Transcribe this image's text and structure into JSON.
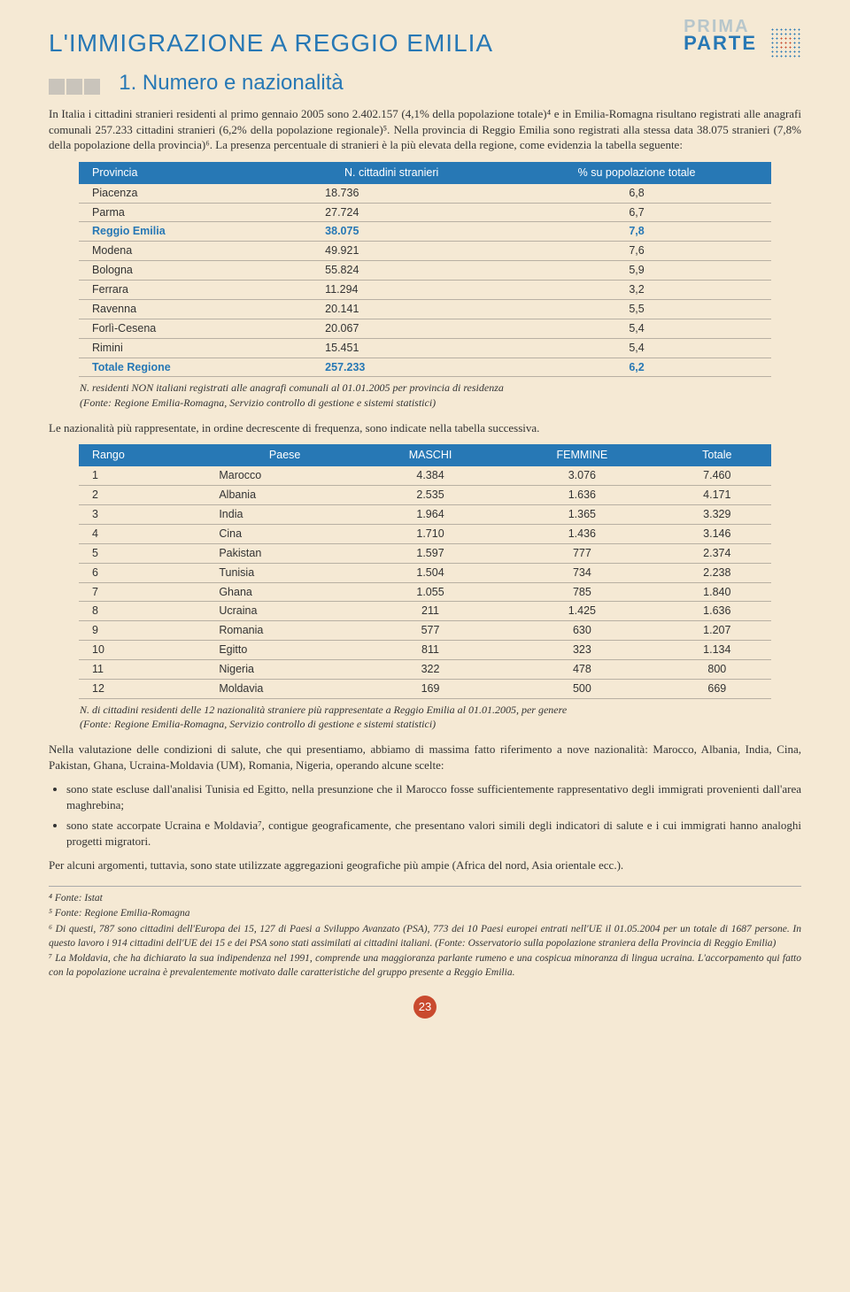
{
  "header": {
    "title": "L'IMMIGRAZIONE A REGGIO EMILIA",
    "parte": "PARTE"
  },
  "section": {
    "heading": "1. Numero e nazionalità"
  },
  "para1": "In Italia i cittadini stranieri residenti al primo gennaio 2005 sono 2.402.157 (4,1% della popolazione totale)⁴ e in Emilia-Romagna risultano registrati alle anagrafi comunali 257.233 cittadini stranieri (6,2% della popolazione regionale)⁵. Nella provincia di Reggio Emilia sono registrati alla stessa data 38.075 stranieri (7,8% della popolazione della provincia)⁶. La presenza percentuale di stranieri è la più elevata della regione, come evidenzia la tabella seguente:",
  "table1": {
    "headers": [
      "Provincia",
      "N. cittadini stranieri",
      "% su popolazione totale"
    ],
    "rows": [
      [
        "Piacenza",
        "18.736",
        "6,8"
      ],
      [
        "Parma",
        "27.724",
        "6,7"
      ],
      [
        "Reggio Emilia",
        "38.075",
        "7,8"
      ],
      [
        "Modena",
        "49.921",
        "7,6"
      ],
      [
        "Bologna",
        "55.824",
        "5,9"
      ],
      [
        "Ferrara",
        "11.294",
        "3,2"
      ],
      [
        "Ravenna",
        "20.141",
        "5,5"
      ],
      [
        "Forlì-Cesena",
        "20.067",
        "5,4"
      ],
      [
        "Rimini",
        "15.451",
        "5,4"
      ],
      [
        "Totale Regione",
        "257.233",
        "6,2"
      ]
    ],
    "boldRowIndices": [
      2,
      9
    ],
    "caption": "N. residenti NON italiani registrati alle anagrafi comunali al 01.01.2005 per provincia di residenza\n(Fonte: Regione Emilia-Romagna, Servizio controllo di gestione e sistemi statistici)"
  },
  "para2": "Le nazionalità più rappresentate, in ordine decrescente di frequenza, sono indicate nella tabella successiva.",
  "table2": {
    "headers": [
      "Rango",
      "Paese",
      "MASCHI",
      "FEMMINE",
      "Totale"
    ],
    "rows": [
      [
        "1",
        "Marocco",
        "4.384",
        "3.076",
        "7.460"
      ],
      [
        "2",
        "Albania",
        "2.535",
        "1.636",
        "4.171"
      ],
      [
        "3",
        "India",
        "1.964",
        "1.365",
        "3.329"
      ],
      [
        "4",
        "Cina",
        "1.710",
        "1.436",
        "3.146"
      ],
      [
        "5",
        "Pakistan",
        "1.597",
        "777",
        "2.374"
      ],
      [
        "6",
        "Tunisia",
        "1.504",
        "734",
        "2.238"
      ],
      [
        "7",
        "Ghana",
        "1.055",
        "785",
        "1.840"
      ],
      [
        "8",
        "Ucraina",
        "211",
        "1.425",
        "1.636"
      ],
      [
        "9",
        "Romania",
        "577",
        "630",
        "1.207"
      ],
      [
        "10",
        "Egitto",
        "811",
        "323",
        "1.134"
      ],
      [
        "11",
        "Nigeria",
        "322",
        "478",
        "800"
      ],
      [
        "12",
        "Moldavia",
        "169",
        "500",
        "669"
      ]
    ],
    "caption": "N. di cittadini residenti delle 12 nazionalità straniere più rappresentate a Reggio Emilia al 01.01.2005, per genere\n(Fonte: Regione Emilia-Romagna, Servizio controllo di gestione e sistemi statistici)"
  },
  "para3": "Nella valutazione delle condizioni di salute, che qui presentiamo, abbiamo di massima fatto riferimento a nove nazionalità: Marocco, Albania, India, Cina, Pakistan, Ghana, Ucraina-Moldavia (UM), Romania, Nigeria, operando alcune scelte:",
  "bullets": [
    "sono state escluse dall'analisi Tunisia ed Egitto, nella presunzione che il Marocco fosse sufficientemente rappresentativo degli immigrati provenienti dall'area maghrebina;",
    "sono state accorpate Ucraina e Moldavia⁷, contigue geograficamente, che presentano valori simili degli indicatori di salute e i cui immigrati hanno analoghi progetti migratori."
  ],
  "para4": "Per alcuni argomenti, tuttavia, sono state utilizzate aggregazioni geografiche più ampie (Africa del nord, Asia orientale ecc.).",
  "footnotes": [
    "⁴ Fonte: Istat",
    "⁵ Fonte: Regione Emilia-Romagna",
    "⁶ Di questi, 787 sono cittadini dell'Europa dei 15, 127 di Paesi a Sviluppo Avanzato (PSA), 773 dei 10 Paesi europei entrati nell'UE il 01.05.2004 per un totale di 1687 persone. In questo lavoro i 914 cittadini dell'UE dei 15 e dei PSA sono stati assimilati ai cittadini italiani. (Fonte: Osservatorio sulla popolazione straniera della Provincia di Reggio Emilia)",
    "⁷ La Moldavia, che ha dichiarato la sua indipendenza nel 1991, comprende una maggioranza parlante rumeno e una cospicua minoranza di lingua ucraina. L'accorpamento qui fatto con la popolazione ucraina è prevalentemente motivato dalle caratteristiche del gruppo presente a Reggio Emilia."
  ],
  "pageNumber": "23"
}
